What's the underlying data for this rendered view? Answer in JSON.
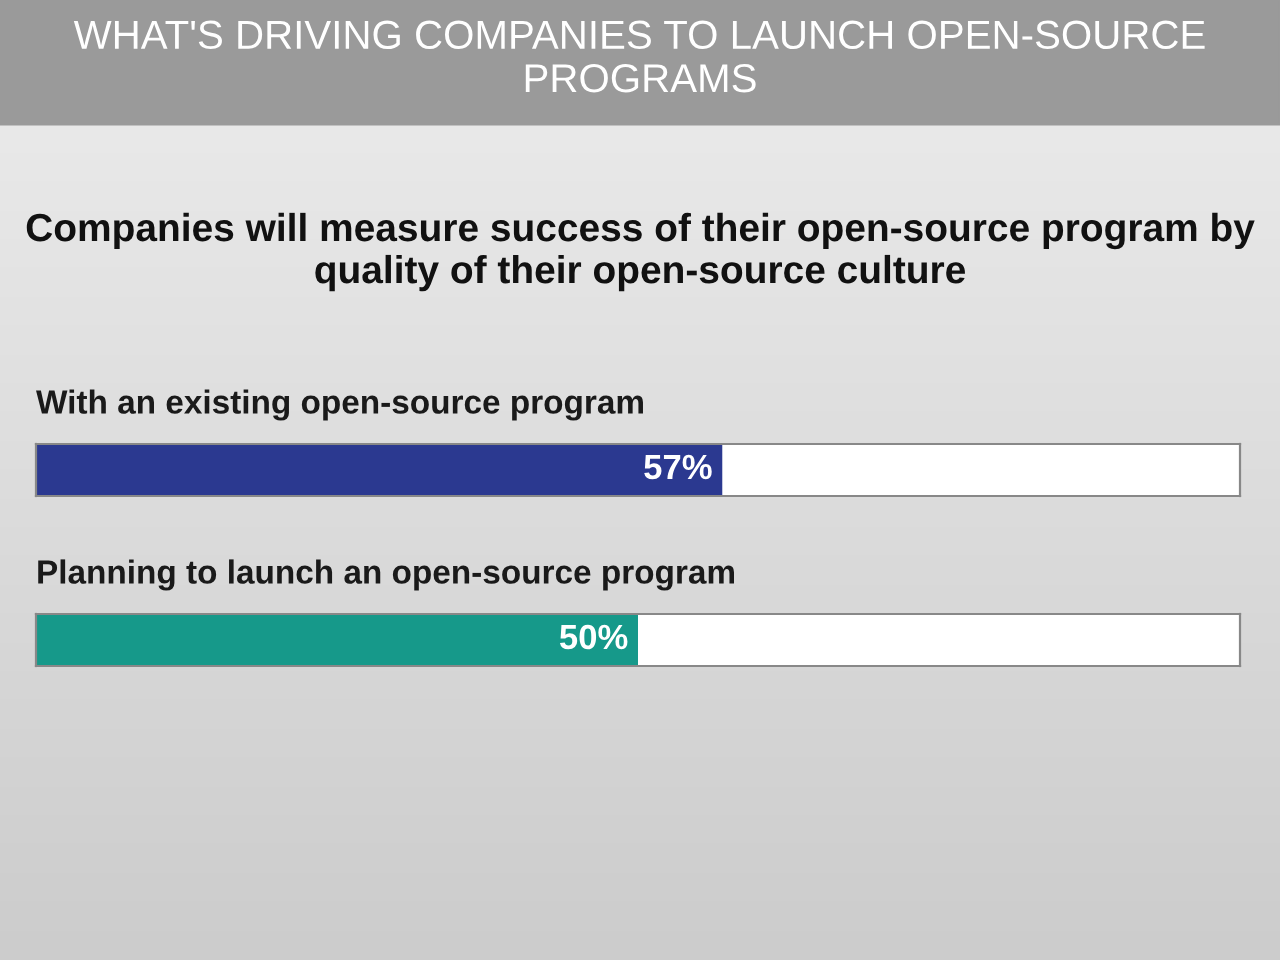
{
  "chart_data": {
    "type": "bar",
    "orientation": "horizontal",
    "title": "WHAT'S DRIVING COMPANIES TO LAUNCH OPEN-SOURCE PROGRAMS",
    "subtitle": "Companies will measure success of their open-source program by quality of their open-source culture",
    "categories": [
      "With an existing open-source program",
      "Planning to launch an open-source program"
    ],
    "values": [
      57,
      50
    ],
    "colors": [
      "#2b3990",
      "#16998a"
    ],
    "value_labels": [
      "57%",
      "50%"
    ],
    "xlim": [
      0,
      100
    ],
    "legend": false
  }
}
